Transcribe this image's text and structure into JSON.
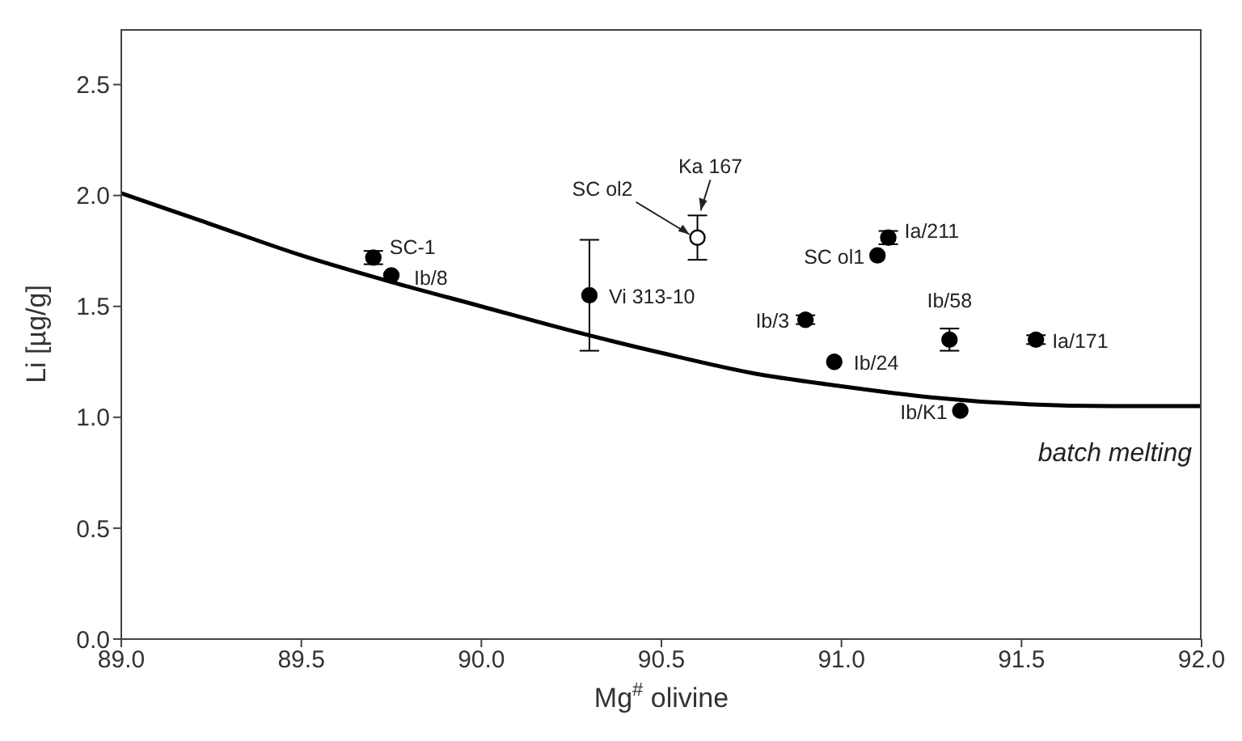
{
  "chart_data": {
    "type": "scatter",
    "xlabel": "Mg$^{#}$ olivine",
    "ylabel": "Li [µg/g]",
    "xlim": [
      89.0,
      92.0
    ],
    "xticks": [
      {
        "value": 89,
        "label": "89.0"
      },
      {
        "value": 89.5,
        "label": "89.5"
      },
      {
        "value": 90,
        "label": "90.0"
      },
      {
        "value": 90.5,
        "label": "90.5"
      },
      {
        "value": 91,
        "label": "91.0"
      },
      {
        "value": 91.5,
        "label": "91.5"
      },
      {
        "value": 92,
        "label": "92.0"
      }
    ],
    "ylim": [
      0,
      2.75
    ],
    "yticks": [
      {
        "value": 0,
        "label": "0.0"
      },
      {
        "value": 0.5,
        "label": "0.5"
      },
      {
        "value": 1,
        "label": "1.0"
      },
      {
        "value": 1.5,
        "label": "1.5"
      },
      {
        "value": 2,
        "label": "2.0"
      },
      {
        "value": 2.5,
        "label": "2.5"
      }
    ],
    "marker": "circle",
    "series": [
      {
        "type": "line",
        "color": "#000000",
        "marker": "none",
        "x": [
          89.0,
          89.25,
          89.5,
          89.75,
          90.0,
          90.25,
          90.5,
          90.75,
          91.0,
          91.25,
          91.5,
          91.75,
          92.0
        ],
        "values": [
          2.01,
          1.87,
          1.73,
          1.61,
          1.5,
          1.39,
          1.29,
          1.2,
          1.14,
          1.09,
          1.06,
          1.05,
          1.05
        ]
      },
      {
        "color": "#000000",
        "x": [
          89.7,
          89.75,
          90.3,
          90.9,
          90.98,
          91.1,
          91.13,
          91.3,
          91.33,
          91.54
        ],
        "values": [
          1.72,
          1.64,
          1.55,
          1.44,
          1.25,
          1.73,
          1.81,
          1.35,
          1.03,
          1.35
        ],
        "errors": [
          0.03,
          null,
          0.25,
          0.02,
          null,
          null,
          0.03,
          0.05,
          null,
          0.02
        ]
      },
      {
        "color": "#ffffff",
        "x": [
          90.6
        ],
        "values": [
          1.81
        ],
        "errors": [
          0.1
        ]
      }
    ],
    "annotations": [
      {
        "text": "SC-1",
        "x": 89.7,
        "y": 1.72
      },
      {
        "text": "Ib/8",
        "x": 89.75,
        "y": 1.64
      },
      {
        "text": "Vi 313-10",
        "x": 90.3,
        "y": 1.55
      },
      {
        "text": "SC ol2",
        "x": 90.6,
        "y": 1.81
      },
      {
        "text": "Ka 167",
        "x": 90.6,
        "y": 1.91
      },
      {
        "text": "Ia/211",
        "x": 91.13,
        "y": 1.81
      },
      {
        "text": "SC ol1",
        "x": 91.1,
        "y": 1.73
      },
      {
        "text": "Ib/3",
        "x": 90.9,
        "y": 1.44
      },
      {
        "text": "Ib/24",
        "x": 90.98,
        "y": 1.25
      },
      {
        "text": "Ib/58",
        "x": 91.3,
        "y": 1.35
      },
      {
        "text": "Ia/171",
        "x": 91.54,
        "y": 1.35
      },
      {
        "text": "Ib/K1",
        "x": 91.33,
        "y": 1.03
      },
      {
        "text": "batch melting",
        "x": 92.0,
        "y": 1.05
      }
    ]
  }
}
